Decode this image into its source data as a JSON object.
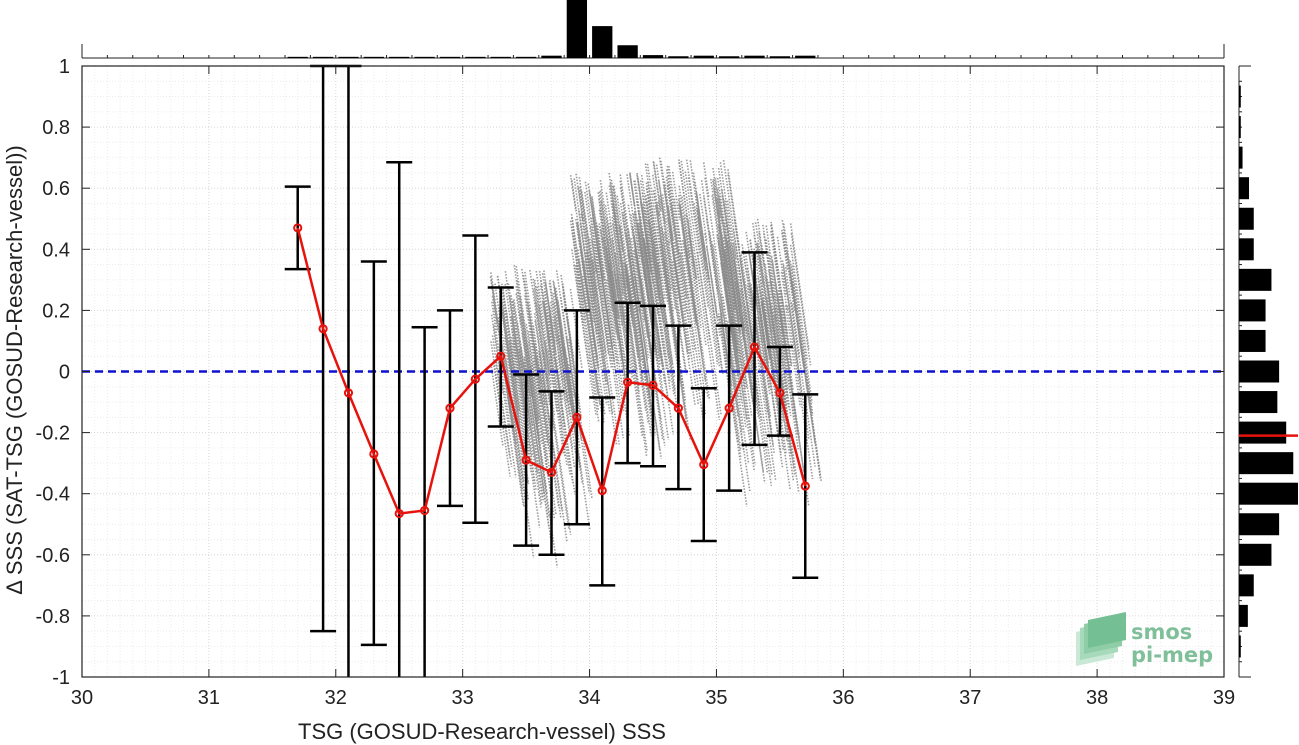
{
  "chart_data": {
    "type": "scatter",
    "xlabel": "TSG (GOSUD-Research-vessel) SSS",
    "ylabel": "Δ SSS (SAT-TSG (GOSUD-Research-vessel))",
    "xlim": [
      30,
      39
    ],
    "ylim": [
      -1,
      1
    ],
    "xticks": [
      "30",
      "31",
      "32",
      "33",
      "34",
      "35",
      "36",
      "37",
      "38",
      "39"
    ],
    "yticks": [
      "-1",
      "-0.8",
      "-0.6",
      "-0.4",
      "-0.2",
      "0",
      "0.2",
      "0.4",
      "0.6",
      "0.8",
      "1"
    ],
    "grid": true,
    "zero_line": 0,
    "binned_mean": {
      "x": [
        31.7,
        31.9,
        32.1,
        32.3,
        32.5,
        32.7,
        32.9,
        33.1,
        33.3,
        33.5,
        33.7,
        33.9,
        34.1,
        34.3,
        34.5,
        34.7,
        34.9,
        35.1,
        35.3,
        35.5,
        35.7
      ],
      "y": [
        0.47,
        0.14,
        -0.07,
        -0.27,
        -0.465,
        -0.455,
        -0.12,
        -0.025,
        0.05,
        -0.29,
        -0.33,
        -0.15,
        -0.39,
        -0.035,
        -0.045,
        -0.12,
        -0.305,
        -0.12,
        0.08,
        -0.07,
        -0.375
      ],
      "err_low": [
        0.335,
        -0.85,
        -1.15,
        -0.895,
        -1.15,
        -1.15,
        -0.44,
        -0.495,
        -0.18,
        -0.57,
        -0.6,
        -0.5,
        -0.7,
        -0.3,
        -0.31,
        -0.385,
        -0.555,
        -0.39,
        -0.24,
        -0.21,
        -0.675
      ],
      "err_high": [
        0.605,
        1.0,
        1.0,
        0.36,
        0.685,
        0.145,
        0.2,
        0.445,
        0.275,
        -0.01,
        -0.065,
        0.2,
        -0.085,
        0.225,
        0.215,
        0.15,
        -0.055,
        0.15,
        0.39,
        0.08,
        -0.075
      ]
    },
    "scatter_clusters": [
      {
        "x_start": 33.85,
        "x_end": 34.45,
        "y_top": 0.65,
        "y_bottom": -0.8
      },
      {
        "x_start": 33.2,
        "x_end": 33.85,
        "y_top": 0.35,
        "y_bottom": -0.8
      },
      {
        "x_start": 34.3,
        "x_end": 35.1,
        "y_top": 0.7,
        "y_bottom": -0.55
      },
      {
        "x_start": 35.0,
        "x_end": 35.6,
        "y_top": 0.5,
        "y_bottom": -0.75
      }
    ],
    "top_histogram": {
      "bins": [
        31.7,
        31.9,
        32.1,
        32.3,
        32.5,
        32.7,
        32.9,
        33.1,
        33.3,
        33.5,
        33.7,
        33.9,
        34.1,
        34.3,
        34.5,
        34.7,
        34.9,
        35.1,
        35.3,
        35.5,
        35.7
      ],
      "counts": [
        0.02,
        0.02,
        0.02,
        0.02,
        0.02,
        0.02,
        0.02,
        0.02,
        0.02,
        0.02,
        0.04,
        1.0,
        0.55,
        0.22,
        0.05,
        0.03,
        0.04,
        0.03,
        0.04,
        0.03,
        0.04
      ]
    },
    "right_histogram": {
      "bins": [
        0.9,
        0.8,
        0.7,
        0.6,
        0.5,
        0.4,
        0.3,
        0.2,
        0.1,
        0.0,
        -0.1,
        -0.2,
        -0.3,
        -0.4,
        -0.5,
        -0.6,
        -0.7,
        -0.8,
        -0.9
      ],
      "counts": [
        0.03,
        0.03,
        0.06,
        0.17,
        0.25,
        0.25,
        0.55,
        0.45,
        0.45,
        0.68,
        0.65,
        0.8,
        0.92,
        1.0,
        0.68,
        0.55,
        0.25,
        0.15,
        0.03
      ],
      "mean_line": -0.21
    },
    "colors": {
      "mean_line": "#e8120c",
      "zero_line": "#1010d0",
      "scatter": "#8a8a8a",
      "errorbar": "#000000",
      "histogram": "#000000"
    }
  },
  "logo": {
    "line1": "smos",
    "line2": "pi-mep"
  }
}
